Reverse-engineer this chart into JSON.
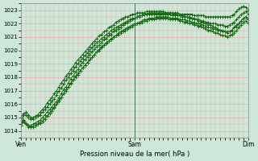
{
  "title": "Pression niveau de la mer( hPa )",
  "ylim": [
    1013.5,
    1023.5
  ],
  "yticks": [
    1014,
    1015,
    1016,
    1017,
    1018,
    1019,
    1020,
    1021,
    1022,
    1023
  ],
  "xtick_labels": [
    "Ven",
    "Sam",
    "Dim"
  ],
  "xtick_positions": [
    0,
    48,
    96
  ],
  "x_total": 96,
  "background_color": "#cde8d8",
  "grid_color": "#f0a0a0",
  "line_color": "#1a6b1a",
  "vline_color": "#555555",
  "curve1": [
    1014.4,
    1014.8,
    1014.6,
    1014.4,
    1014.4,
    1014.5,
    1014.6,
    1014.7,
    1014.8,
    1015.0,
    1015.2,
    1015.4,
    1015.6,
    1015.8,
    1016.0,
    1016.2,
    1016.5,
    1016.8,
    1017.1,
    1017.3,
    1017.6,
    1017.9,
    1018.1,
    1018.4,
    1018.6,
    1018.9,
    1019.1,
    1019.3,
    1019.5,
    1019.7,
    1019.9,
    1020.1,
    1020.3,
    1020.4,
    1020.6,
    1020.8,
    1020.9,
    1021.1,
    1021.2,
    1021.4,
    1021.5,
    1021.6,
    1021.7,
    1021.9,
    1022.0,
    1022.1,
    1022.2,
    1022.3,
    1022.4,
    1022.5,
    1022.5,
    1022.6,
    1022.7,
    1022.7,
    1022.8,
    1022.8,
    1022.8,
    1022.8,
    1022.8,
    1022.8,
    1022.8,
    1022.8,
    1022.8,
    1022.8,
    1022.8,
    1022.8,
    1022.8,
    1022.7,
    1022.7,
    1022.7,
    1022.7,
    1022.7,
    1022.7,
    1022.6,
    1022.6,
    1022.6,
    1022.6,
    1022.6,
    1022.5,
    1022.5,
    1022.5,
    1022.5,
    1022.5,
    1022.5,
    1022.5,
    1022.5,
    1022.5,
    1022.5,
    1022.5,
    1022.6,
    1022.7,
    1022.9,
    1023.1,
    1023.2,
    1023.3,
    1023.2,
    1023.0
  ],
  "curve2": [
    1015.0,
    1015.3,
    1015.2,
    1015.0,
    1014.9,
    1014.9,
    1015.0,
    1015.1,
    1015.2,
    1015.4,
    1015.6,
    1015.8,
    1016.0,
    1016.2,
    1016.4,
    1016.7,
    1017.0,
    1017.2,
    1017.5,
    1017.8,
    1018.0,
    1018.3,
    1018.5,
    1018.8,
    1019.0,
    1019.2,
    1019.4,
    1019.6,
    1019.8,
    1020.0,
    1020.2,
    1020.4,
    1020.6,
    1020.7,
    1020.9,
    1021.0,
    1021.2,
    1021.3,
    1021.5,
    1021.6,
    1021.7,
    1021.8,
    1021.9,
    1022.0,
    1022.1,
    1022.2,
    1022.3,
    1022.4,
    1022.4,
    1022.5,
    1022.6,
    1022.6,
    1022.7,
    1022.7,
    1022.7,
    1022.7,
    1022.7,
    1022.7,
    1022.7,
    1022.7,
    1022.7,
    1022.7,
    1022.7,
    1022.7,
    1022.6,
    1022.6,
    1022.6,
    1022.6,
    1022.5,
    1022.5,
    1022.5,
    1022.4,
    1022.4,
    1022.4,
    1022.3,
    1022.3,
    1022.2,
    1022.2,
    1022.1,
    1022.1,
    1022.0,
    1022.0,
    1022.0,
    1021.9,
    1021.9,
    1021.9,
    1021.8,
    1021.8,
    1021.9,
    1022.0,
    1022.1,
    1022.3,
    1022.5,
    1022.7,
    1022.8,
    1022.9,
    1022.7
  ],
  "curve3": [
    1014.4,
    1014.8,
    1014.6,
    1014.4,
    1014.3,
    1014.3,
    1014.4,
    1014.5,
    1014.6,
    1014.7,
    1014.9,
    1015.1,
    1015.3,
    1015.5,
    1015.7,
    1016.0,
    1016.2,
    1016.5,
    1016.8,
    1017.0,
    1017.3,
    1017.5,
    1017.8,
    1018.0,
    1018.2,
    1018.5,
    1018.7,
    1018.9,
    1019.1,
    1019.3,
    1019.5,
    1019.7,
    1019.9,
    1020.1,
    1020.3,
    1020.4,
    1020.6,
    1020.7,
    1020.9,
    1021.0,
    1021.1,
    1021.3,
    1021.4,
    1021.5,
    1021.6,
    1021.7,
    1021.8,
    1021.9,
    1022.0,
    1022.0,
    1022.1,
    1022.2,
    1022.3,
    1022.3,
    1022.4,
    1022.4,
    1022.4,
    1022.5,
    1022.5,
    1022.5,
    1022.5,
    1022.5,
    1022.5,
    1022.4,
    1022.4,
    1022.4,
    1022.4,
    1022.3,
    1022.3,
    1022.3,
    1022.2,
    1022.2,
    1022.1,
    1022.1,
    1022.0,
    1022.0,
    1021.9,
    1021.9,
    1021.8,
    1021.7,
    1021.7,
    1021.6,
    1021.6,
    1021.5,
    1021.5,
    1021.4,
    1021.4,
    1021.3,
    1021.4,
    1021.5,
    1021.7,
    1021.8,
    1022.0,
    1022.2,
    1022.4,
    1022.5,
    1022.3
  ],
  "curve4": [
    1014.4,
    1014.7,
    1014.5,
    1014.3,
    1014.3,
    1014.3,
    1014.4,
    1014.5,
    1014.6,
    1014.7,
    1014.9,
    1015.1,
    1015.3,
    1015.5,
    1015.8,
    1016.0,
    1016.3,
    1016.5,
    1016.8,
    1017.1,
    1017.3,
    1017.6,
    1017.8,
    1018.1,
    1018.3,
    1018.5,
    1018.7,
    1018.9,
    1019.1,
    1019.3,
    1019.5,
    1019.7,
    1019.9,
    1020.0,
    1020.2,
    1020.4,
    1020.5,
    1020.7,
    1020.8,
    1021.0,
    1021.1,
    1021.2,
    1021.3,
    1021.4,
    1021.5,
    1021.6,
    1021.7,
    1021.8,
    1021.9,
    1022.0,
    1022.0,
    1022.1,
    1022.2,
    1022.2,
    1022.3,
    1022.3,
    1022.3,
    1022.4,
    1022.4,
    1022.4,
    1022.4,
    1022.4,
    1022.4,
    1022.3,
    1022.3,
    1022.3,
    1022.3,
    1022.2,
    1022.2,
    1022.1,
    1022.1,
    1022.0,
    1022.0,
    1021.9,
    1021.9,
    1021.8,
    1021.8,
    1021.7,
    1021.6,
    1021.5,
    1021.5,
    1021.4,
    1021.3,
    1021.3,
    1021.2,
    1021.1,
    1021.1,
    1021.0,
    1021.1,
    1021.2,
    1021.3,
    1021.5,
    1021.7,
    1021.9,
    1022.1,
    1022.2,
    1022.0
  ],
  "curve5": [
    1014.4,
    1015.2,
    1015.4,
    1015.2,
    1015.0,
    1015.0,
    1015.1,
    1015.2,
    1015.4,
    1015.6,
    1015.8,
    1016.1,
    1016.3,
    1016.5,
    1016.8,
    1017.0,
    1017.3,
    1017.6,
    1017.8,
    1018.1,
    1018.3,
    1018.6,
    1018.8,
    1019.1,
    1019.3,
    1019.5,
    1019.7,
    1019.9,
    1020.1,
    1020.3,
    1020.5,
    1020.7,
    1020.9,
    1021.1,
    1021.2,
    1021.4,
    1021.5,
    1021.7,
    1021.8,
    1021.9,
    1022.1,
    1022.2,
    1022.3,
    1022.4,
    1022.5,
    1022.5,
    1022.6,
    1022.7,
    1022.7,
    1022.8,
    1022.8,
    1022.8,
    1022.8,
    1022.9,
    1022.9,
    1022.9,
    1022.9,
    1022.9,
    1022.9,
    1022.9,
    1022.9,
    1022.8,
    1022.8,
    1022.8,
    1022.7,
    1022.7,
    1022.7,
    1022.6,
    1022.6,
    1022.5,
    1022.5,
    1022.5,
    1022.4,
    1022.3,
    1022.3,
    1022.2,
    1022.1,
    1022.1,
    1022.0,
    1021.9,
    1021.9,
    1021.8,
    1021.7,
    1021.6,
    1021.5,
    1021.5,
    1021.4,
    1021.4,
    1021.4,
    1021.5,
    1021.7,
    1021.9,
    1022.0,
    1022.2,
    1022.4,
    1022.5,
    1022.3
  ]
}
